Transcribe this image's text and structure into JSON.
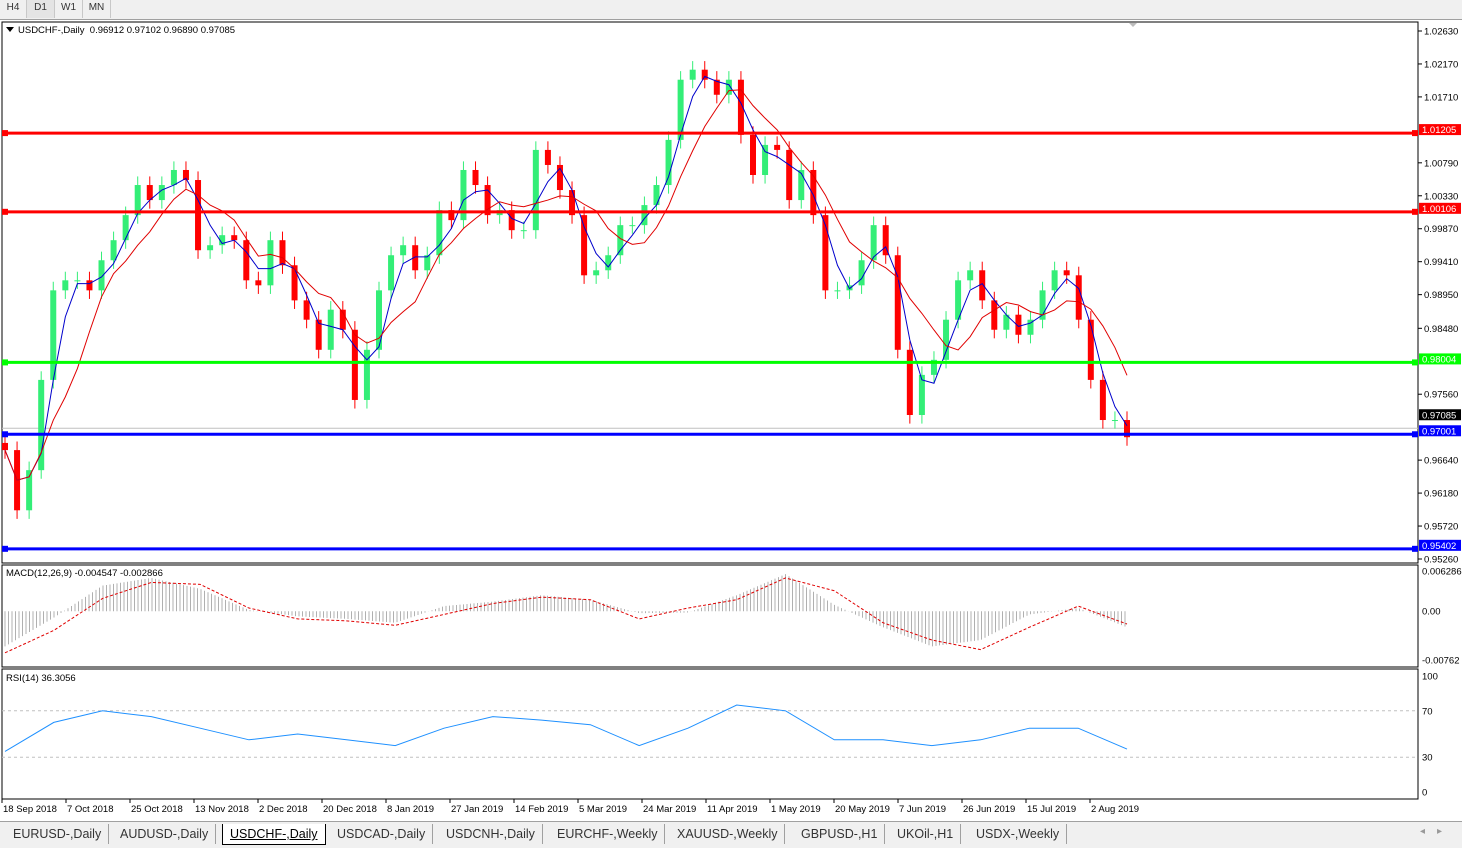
{
  "toolbar": {
    "timeframes": [
      "H4",
      "D1",
      "W1",
      "MN"
    ],
    "active": "D1"
  },
  "header": {
    "symbol": "USDCHF-,Daily",
    "ohlc": "0.96912 0.97102 0.96890 0.97085"
  },
  "colors": {
    "bull": "#33ee77",
    "bear": "#ff0000",
    "fast_ma": "#0000cc",
    "slow_ma": "#e00000",
    "support_green": "#00ff00",
    "level_red": "#ff0000",
    "level_blue": "#0000ff"
  },
  "price_axis": {
    "ticks": [
      "1.02630",
      "1.02170",
      "1.01710",
      "1.00790",
      "1.00330",
      "0.99870",
      "0.99410",
      "0.98950",
      "0.98480",
      "0.97560",
      "0.96640",
      "0.96180",
      "0.95720",
      "0.95260"
    ],
    "ylim": [
      0.9526,
      1.0263
    ]
  },
  "levels": [
    {
      "price": 1.01205,
      "label": "1.01205",
      "color": "#ff0000"
    },
    {
      "price": 1.00106,
      "label": "1.00106",
      "color": "#ff0000"
    },
    {
      "price": 0.98004,
      "label": "0.98004",
      "color": "#00ff00"
    },
    {
      "price": 0.97001,
      "label": "0.97001",
      "color": "#0000ff"
    },
    {
      "price": 0.95402,
      "label": "0.95402",
      "color": "#0000ff"
    }
  ],
  "current_price": {
    "price": 0.97085,
    "label": "0.97085"
  },
  "chart_data": {
    "type": "candlestick",
    "closes": [
      0.9678,
      0.9594,
      0.965,
      0.9776,
      0.9901,
      0.9915,
      0.9915,
      0.9901,
      0.9943,
      0.9971,
      1.0006,
      1.0048,
      1.0027,
      1.0048,
      1.0069,
      1.0055,
      0.9957,
      0.9964,
      0.9978,
      0.9971,
      0.9915,
      0.9908,
      0.9971,
      0.9936,
      0.9887,
      0.986,
      0.9818,
      0.9874,
      0.9846,
      0.9748,
      0.9818,
      0.9901,
      0.995,
      0.9964,
      0.9929,
      0.995,
      1.0013,
      0.9999,
      1.0069,
      1.0048,
      1.0006,
      1.0013,
      0.9985,
      0.9985,
      1.0097,
      1.0076,
      1.0041,
      1.0006,
      0.9922,
      0.9929,
      0.995,
      0.9992,
      0.9992,
      1.002,
      1.0048,
      1.0111,
      1.0195,
      1.0209,
      1.0195,
      1.0174,
      1.0195,
      1.0118,
      1.0062,
      1.0104,
      1.0097,
      1.0027,
      1.0069,
      1.0006,
      0.9901,
      0.9901,
      0.9908,
      0.9943,
      0.9992,
      0.995,
      0.9818,
      0.9727,
      0.9783,
      0.9804,
      0.986,
      0.9915,
      0.9929,
      0.9887,
      0.9846,
      0.9867,
      0.9839,
      0.986,
      0.9901,
      0.9929,
      0.9922,
      0.986,
      0.9776,
      0.972,
      0.972,
      0.9696
    ],
    "x_ticks": [
      "18 Sep 2018",
      "7 Oct 2018",
      "25 Oct 2018",
      "13 Nov 2018",
      "2 Dec 2018",
      "20 Dec 2018",
      "8 Jan 2019",
      "27 Jan 2019",
      "14 Feb 2019",
      "5 Mar 2019",
      "24 Mar 2019",
      "11 Apr 2019",
      "1 May 2019",
      "20 May 2019",
      "7 Jun 2019",
      "26 Jun 2019",
      "15 Jul 2019",
      "2 Aug 2019"
    ]
  },
  "macd": {
    "label": "MACD(12,26,9) -0.004547 -0.002866",
    "ticks": [
      "0.006286",
      "0.00",
      "-0.00762"
    ],
    "ylim": [
      -0.00762,
      0.006286
    ],
    "histogram": [
      -0.0055,
      -0.001,
      0.004,
      0.0052,
      0.0035,
      0.0002,
      -0.0008,
      -0.0012,
      -0.0018,
      0.0008,
      0.0015,
      0.0025,
      0.0018,
      -0.0003,
      -0.0002,
      0.0025,
      0.0058,
      0.001,
      -0.0025,
      -0.0055,
      -0.0045,
      -0.0005,
      0.0005,
      -0.0025
    ],
    "signal": [
      -0.0065,
      -0.003,
      0.002,
      0.0045,
      0.0042,
      0.0005,
      -0.0012,
      -0.0015,
      -0.0022,
      -0.0005,
      0.0012,
      0.0022,
      0.0018,
      -0.0012,
      0.0005,
      0.0018,
      0.0052,
      0.0032,
      -0.0018,
      -0.0045,
      -0.006,
      -0.0025,
      0.0008,
      -0.002
    ]
  },
  "rsi": {
    "label": "RSI(14) 36.3056",
    "ticks": [
      "100",
      "70",
      "30",
      "0"
    ],
    "levels": [
      70,
      30
    ],
    "values": [
      35,
      60,
      70,
      65,
      55,
      45,
      50,
      45,
      40,
      55,
      65,
      62,
      58,
      40,
      55,
      75,
      70,
      45,
      45,
      40,
      45,
      55,
      55,
      37
    ]
  },
  "tabs": [
    "EURUSD-,Daily",
    "AUDUSD-,Daily",
    "USDCHF-,Daily",
    "USDCAD-,Daily",
    "USDCNH-,Daily",
    "EURCHF-,Weekly",
    "XAUUSD-,Weekly",
    "GBPUSD-,H1",
    "UKOil-,H1",
    "USDX-,Weekly"
  ],
  "active_tab": "USDCHF-,Daily"
}
